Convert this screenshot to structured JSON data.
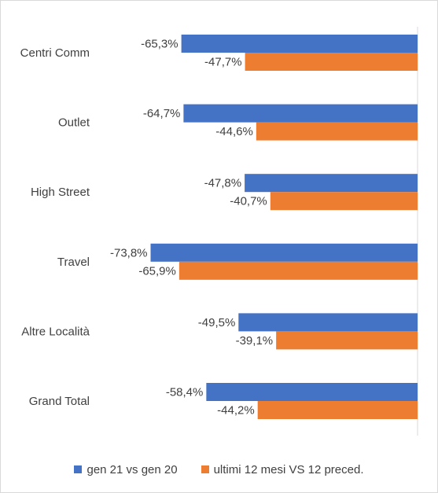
{
  "chart_data": {
    "type": "bar",
    "orientation": "horizontal",
    "categories": [
      "Centri Comm",
      "Outlet",
      "High Street",
      "Travel",
      "Altre Località",
      "Grand Total"
    ],
    "series": [
      {
        "name": "gen 21 vs gen 20",
        "color": "#4472C4",
        "values": [
          -65.3,
          -64.7,
          -47.8,
          -73.8,
          -49.5,
          -58.4
        ],
        "labels": [
          "-65,3%",
          "-64,7%",
          "-47,8%",
          "-73,8%",
          "-49,5%",
          "-58,4%"
        ]
      },
      {
        "name": "ultimi 12 mesi VS 12 preced.",
        "color": "#ED7D31",
        "values": [
          -47.7,
          -44.6,
          -40.7,
          -65.9,
          -39.1,
          -44.2
        ],
        "labels": [
          "-47,7%",
          "-44,6%",
          "-40,7%",
          "-65,9%",
          "-39,1%",
          "-44,2%"
        ]
      }
    ],
    "xlim": [
      -80,
      0
    ],
    "grid": false,
    "legend_position": "bottom"
  }
}
